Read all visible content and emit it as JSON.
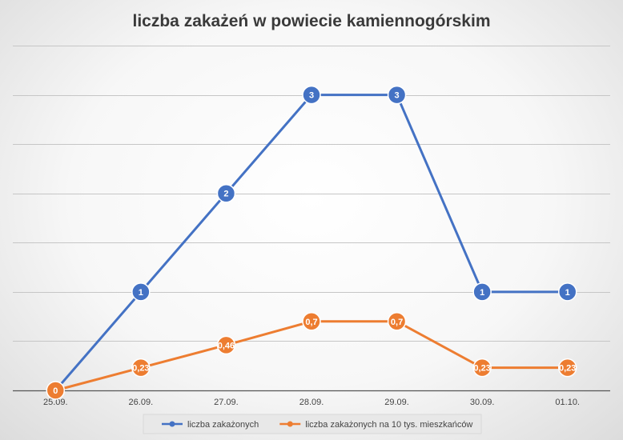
{
  "chart_data": {
    "type": "line",
    "title": "liczba zakażeń w powiecie kamiennogórskim",
    "xlabel": "",
    "ylabel": "",
    "categories": [
      "25.09.",
      "26.09.",
      "27.09.",
      "28.09.",
      "29.09.",
      "30.09.",
      "01.10."
    ],
    "ylim": [
      0,
      3.5
    ],
    "grid": true,
    "legend_position": "bottom",
    "series": [
      {
        "name": "liczba zakażonych",
        "color": "#4472C4",
        "values": [
          0,
          1,
          2,
          3,
          3,
          1,
          1
        ],
        "labels": [
          "0",
          "1",
          "2",
          "3",
          "3",
          "1",
          "1"
        ]
      },
      {
        "name": "liczba zakażonych na 10 tys. mieszkańców",
        "color": "#ED7D31",
        "values": [
          0,
          0.23,
          0.46,
          0.7,
          0.7,
          0.23,
          0.23
        ],
        "labels": [
          "0",
          "0,23",
          "0,46",
          "0,7",
          "0,7",
          "0,23",
          "0,23"
        ]
      }
    ]
  }
}
